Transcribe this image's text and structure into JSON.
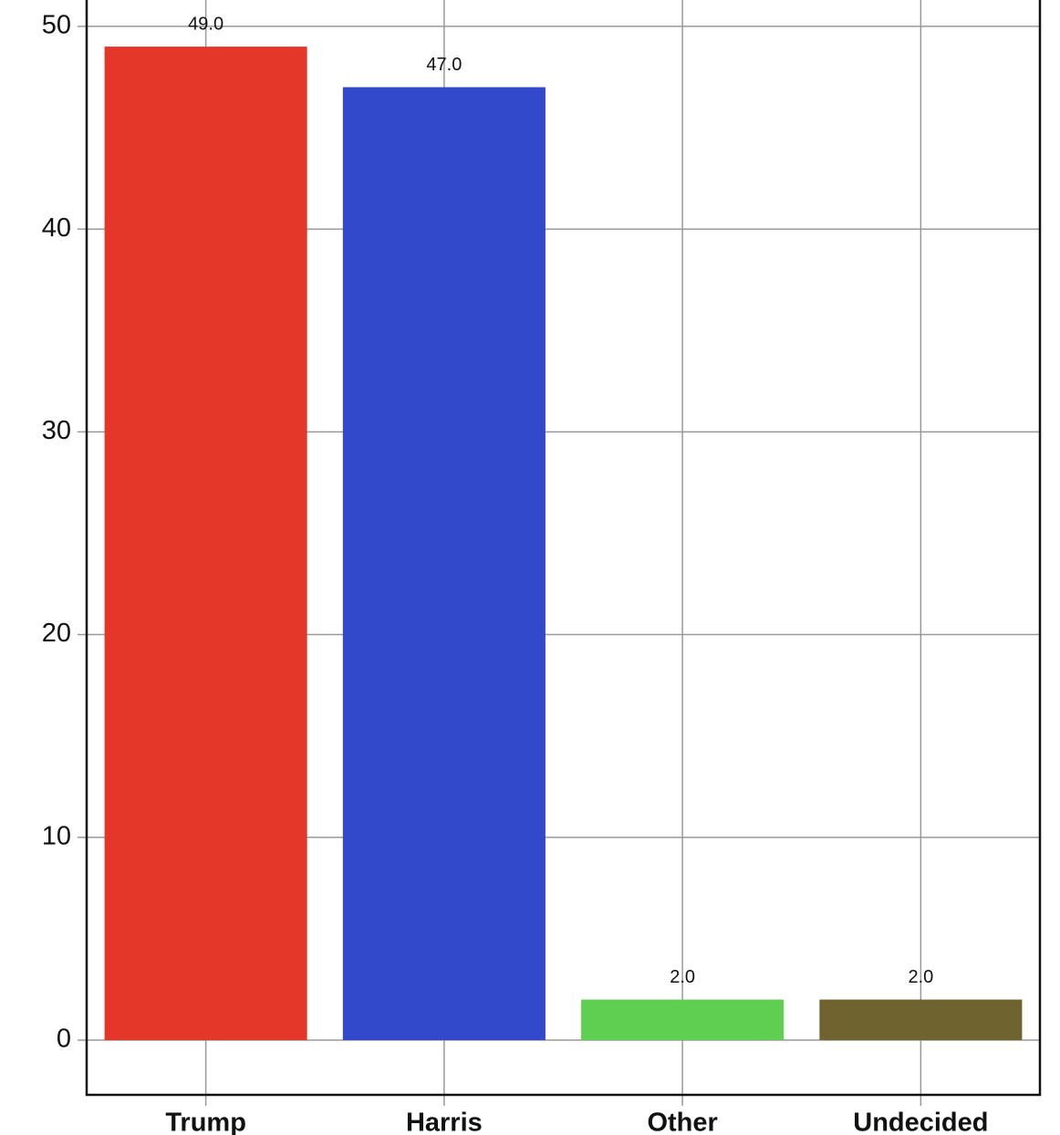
{
  "chart_data": {
    "type": "bar",
    "categories": [
      "Trump",
      "Harris",
      "Other",
      "Undecided"
    ],
    "values": [
      49,
      47,
      2,
      2
    ],
    "value_labels": [
      "49.0",
      "47.0",
      "2.0",
      "2.0"
    ],
    "colors": [
      "#e5362a",
      "#3249cb",
      "#5fcf52",
      "#6f6330"
    ],
    "ylim": [
      -2.7,
      51.3
    ],
    "yticks": [
      0,
      10,
      20,
      30,
      40,
      50
    ],
    "grid": true
  }
}
